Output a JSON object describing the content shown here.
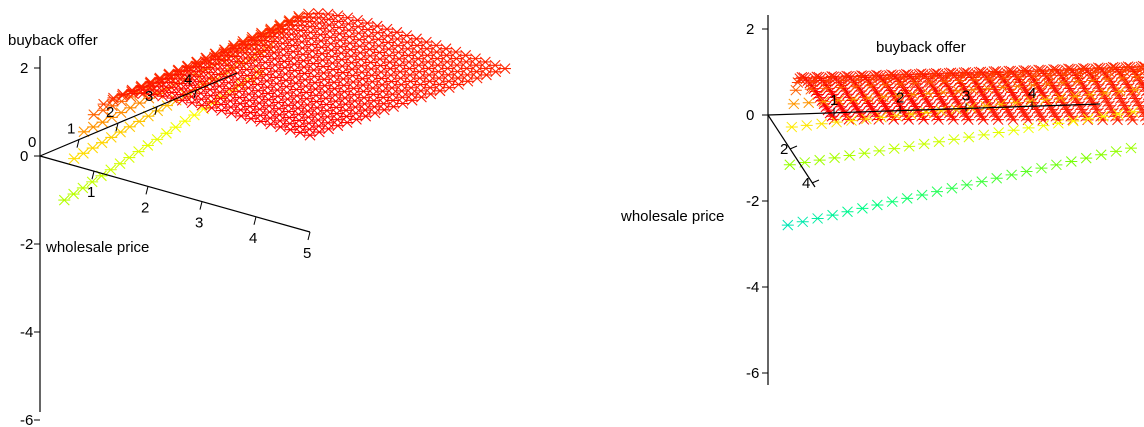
{
  "chart_data": [
    {
      "type": "surface",
      "axes": {
        "x_label": "wholesale price",
        "y_label": "buyback offer",
        "x_ticks": [
          "1",
          "2",
          "3",
          "4",
          "5"
        ],
        "y_ticks": [
          "1",
          "2",
          "3",
          "4"
        ],
        "z_ticks": [
          "-6",
          "-4",
          "-2",
          "0",
          "2"
        ],
        "origin_label": "0",
        "x_range": [
          0,
          5
        ],
        "y_range": [
          0,
          5
        ],
        "z_range": [
          -6,
          2.2
        ]
      },
      "marker": "cross",
      "colormap": [
        "#8000ff",
        "#0000ff",
        "#00c0ff",
        "#00ff80",
        "#80ff00",
        "#ffff00",
        "#ff8000",
        "#ff0000"
      ]
    },
    {
      "type": "surface",
      "axes": {
        "x_label": "buyback offer",
        "y_label": "wholesale price",
        "x_ticks": [
          "1",
          "2",
          "3",
          "4"
        ],
        "y_ticks": [
          "2",
          "4"
        ],
        "z_ticks": [
          "-6",
          "-4",
          "-2",
          "0",
          "2"
        ],
        "x_range": [
          0,
          5
        ],
        "y_range": [
          0,
          5
        ],
        "z_range": [
          -6,
          2.2
        ]
      },
      "marker": "cross",
      "colormap": [
        "#8000ff",
        "#0000ff",
        "#00c0ff",
        "#00ff80",
        "#80ff00",
        "#ffff00",
        "#ff8000",
        "#ff0000"
      ]
    }
  ]
}
